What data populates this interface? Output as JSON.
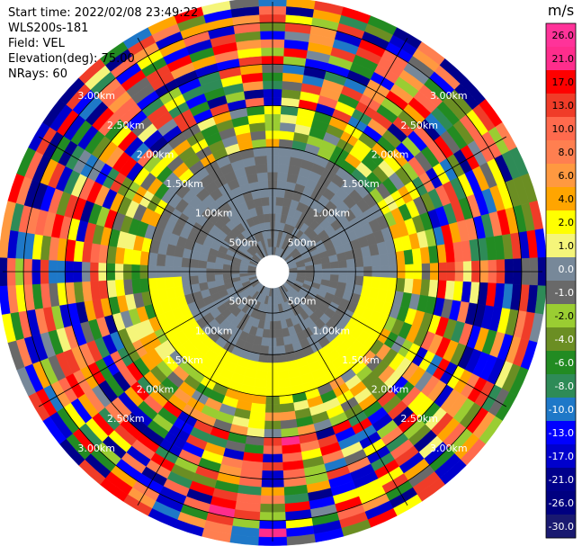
{
  "header": {
    "start_time": "Start time: 2022/02/08 23:49:22",
    "instrument": "WLS200s-181",
    "field": "Field: VEL",
    "elevation": "Elevation(deg): 75.00",
    "nrays": "NRays: 60"
  },
  "chart_data": {
    "type": "heatmap",
    "projection": "polar-ppi",
    "field": "VEL",
    "units": "m/s",
    "range_rings_m": [
      500,
      1000,
      1500,
      2000,
      2500,
      3000
    ],
    "range_ring_labels": [
      "500m",
      "1.00km",
      "1.50km",
      "2.00km",
      "2.50km",
      "3.00km"
    ],
    "max_range_m": 3250,
    "n_rays": 60,
    "spokes_deg": [
      0,
      30,
      60,
      90,
      120,
      150,
      180,
      210,
      240,
      270,
      300,
      330
    ],
    "colorbar": {
      "title": "m/s",
      "ticks": [
        "26.0",
        "21.0",
        "17.0",
        "13.0",
        "10.0",
        "8.0",
        "6.0",
        "4.0",
        "2.0",
        "1.0",
        "0.0",
        "-1.0",
        "-2.0",
        "-4.0",
        "-6.0",
        "-8.0",
        "-10.0",
        "-13.0",
        "-17.0",
        "-21.0",
        "-26.0",
        "-30.0"
      ],
      "bins": [
        {
          "lo": 26,
          "hi": 30,
          "color": "#ff3399"
        },
        {
          "lo": 21,
          "hi": 26,
          "color": "#ff2d8c"
        },
        {
          "lo": 17,
          "hi": 21,
          "color": "#ff0000"
        },
        {
          "lo": 13,
          "hi": 17,
          "color": "#f03c28"
        },
        {
          "lo": 10,
          "hi": 13,
          "color": "#ff6a4d"
        },
        {
          "lo": 8,
          "hi": 10,
          "color": "#ff7f50"
        },
        {
          "lo": 6,
          "hi": 8,
          "color": "#ff9940"
        },
        {
          "lo": 4,
          "hi": 6,
          "color": "#ffa500"
        },
        {
          "lo": 2,
          "hi": 4,
          "color": "#ffff00"
        },
        {
          "lo": 1,
          "hi": 2,
          "color": "#f5f57a"
        },
        {
          "lo": 0,
          "hi": 1,
          "color": "#778899"
        },
        {
          "lo": -1,
          "hi": 0,
          "color": "#696969"
        },
        {
          "lo": -2,
          "hi": -1,
          "color": "#9acd32"
        },
        {
          "lo": -4,
          "hi": -2,
          "color": "#6b8e23"
        },
        {
          "lo": -6,
          "hi": -4,
          "color": "#228b22"
        },
        {
          "lo": -8,
          "hi": -6,
          "color": "#2e8b57"
        },
        {
          "lo": -10,
          "hi": -8,
          "color": "#1e78c8"
        },
        {
          "lo": -13,
          "hi": -10,
          "color": "#0000ff"
        },
        {
          "lo": -17,
          "hi": -13,
          "color": "#0000cd"
        },
        {
          "lo": -21,
          "hi": -17,
          "color": "#00008b"
        },
        {
          "lo": -26,
          "hi": -21,
          "color": "#000080"
        },
        {
          "lo": -30,
          "hi": -26,
          "color": "#191970"
        }
      ]
    },
    "gate_pattern_note": "",
    "colors": {
      "grid": "#000000",
      "center_blank": "#ffffff",
      "ring_label": "#ffffff"
    }
  }
}
